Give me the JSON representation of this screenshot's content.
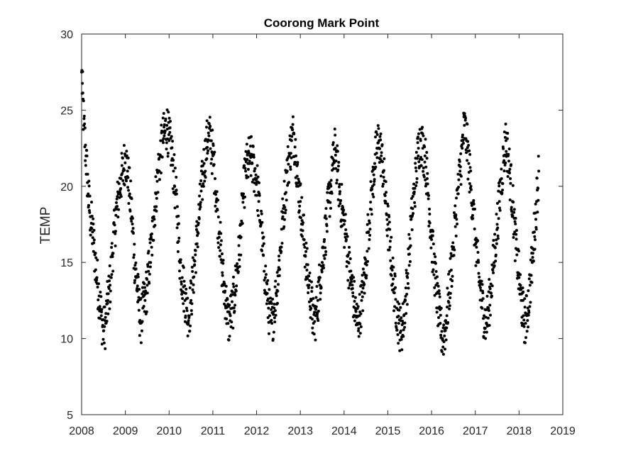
{
  "chart_data": {
    "type": "scatter",
    "title": "Coorong Mark Point",
    "xlabel": "",
    "ylabel": "TEMP",
    "xlim": [
      2008,
      2019
    ],
    "ylim": [
      5,
      30
    ],
    "xticks": [
      2008,
      2009,
      2010,
      2011,
      2012,
      2013,
      2014,
      2015,
      2016,
      2017,
      2018,
      2019
    ],
    "xtick_labels": [
      "2008",
      "2009",
      "2010",
      "2011",
      "2012",
      "2013",
      "2014",
      "2015",
      "2016",
      "2017",
      "2018",
      "2019"
    ],
    "yticks": [
      5,
      10,
      15,
      20,
      25,
      30
    ],
    "ytick_labels": [
      "5",
      "10",
      "15",
      "20",
      "25",
      "30"
    ],
    "grid": false,
    "marker_color": "#000000",
    "series_description": "Daily water temperature, Jan 2008 – Jun 2018, seasonal cycle",
    "series": [
      {
        "name": "TEMP",
        "x": [
          2008.0,
          2008.05,
          2008.1,
          2008.15,
          2008.2,
          2008.25,
          2008.3,
          2008.35,
          2008.4,
          2008.45,
          2008.5,
          2008.55,
          2008.6,
          2008.65,
          2008.7,
          2008.75,
          2008.8,
          2008.85,
          2008.9,
          2008.95,
          2009.0,
          2009.05,
          2009.1,
          2009.15,
          2009.2,
          2009.25,
          2009.3,
          2009.35,
          2009.4,
          2009.45,
          2009.5,
          2009.55,
          2009.6,
          2009.65,
          2009.7,
          2009.75,
          2009.8,
          2009.85,
          2009.9,
          2009.95,
          2010.0,
          2010.05,
          2010.1,
          2010.15,
          2010.2,
          2010.25,
          2010.3,
          2010.35,
          2010.4,
          2010.45,
          2010.5,
          2010.55,
          2010.6,
          2010.65,
          2010.7,
          2010.75,
          2010.8,
          2010.85,
          2010.9,
          2010.95,
          2011.0,
          2011.05,
          2011.1,
          2011.15,
          2011.2,
          2011.25,
          2011.3,
          2011.35,
          2011.4,
          2011.45,
          2011.5,
          2011.55,
          2011.6,
          2011.65,
          2011.7,
          2011.75,
          2011.8,
          2011.85,
          2011.9,
          2011.95,
          2012.0,
          2012.05,
          2012.1,
          2012.15,
          2012.2,
          2012.25,
          2012.3,
          2012.35,
          2012.4,
          2012.45,
          2012.5,
          2012.55,
          2012.6,
          2012.65,
          2012.7,
          2012.75,
          2012.8,
          2012.85,
          2012.9,
          2012.95,
          2013.0,
          2013.05,
          2013.1,
          2013.15,
          2013.2,
          2013.25,
          2013.3,
          2013.35,
          2013.4,
          2013.45,
          2013.5,
          2013.55,
          2013.6,
          2013.65,
          2013.7,
          2013.75,
          2013.8,
          2013.85,
          2013.9,
          2013.95,
          2014.0,
          2014.05,
          2014.1,
          2014.15,
          2014.2,
          2014.25,
          2014.3,
          2014.35,
          2014.4,
          2014.45,
          2014.5,
          2014.55,
          2014.6,
          2014.65,
          2014.7,
          2014.75,
          2014.8,
          2014.85,
          2014.9,
          2014.95,
          2015.0,
          2015.05,
          2015.1,
          2015.15,
          2015.2,
          2015.25,
          2015.3,
          2015.35,
          2015.4,
          2015.45,
          2015.5,
          2015.55,
          2015.6,
          2015.65,
          2015.7,
          2015.75,
          2015.8,
          2015.85,
          2015.9,
          2015.95,
          2016.0,
          2016.05,
          2016.1,
          2016.15,
          2016.2,
          2016.25,
          2016.3,
          2016.35,
          2016.4,
          2016.45,
          2016.5,
          2016.55,
          2016.6,
          2016.65,
          2016.7,
          2016.75,
          2016.8,
          2016.85,
          2016.9,
          2016.95,
          2017.0,
          2017.05,
          2017.1,
          2017.15,
          2017.2,
          2017.25,
          2017.3,
          2017.35,
          2017.4,
          2017.45,
          2017.5,
          2017.55,
          2017.6,
          2017.65,
          2017.7,
          2017.75,
          2017.8,
          2017.85,
          2017.9,
          2017.95,
          2018.0,
          2018.05,
          2018.1,
          2018.15,
          2018.2,
          2018.25,
          2018.3,
          2018.35,
          2018.4,
          2018.45
        ],
        "y": [
          27.5,
          24.0,
          22.0,
          19.5,
          18.0,
          17.0,
          15.5,
          14.0,
          12.8,
          11.5,
          10.5,
          11.0,
          12.5,
          13.5,
          15.5,
          17.0,
          18.5,
          19.5,
          20.5,
          21.0,
          22.0,
          21.0,
          19.5,
          18.0,
          15.5,
          14.0,
          12.5,
          11.0,
          12.0,
          12.5,
          13.5,
          15.0,
          16.0,
          18.0,
          19.5,
          21.0,
          22.0,
          23.0,
          23.5,
          24.0,
          23.0,
          22.5,
          21.0,
          19.5,
          17.5,
          15.0,
          14.0,
          13.0,
          12.0,
          11.5,
          12.5,
          14.0,
          15.5,
          17.0,
          18.5,
          20.0,
          21.5,
          22.5,
          23.5,
          23.0,
          22.0,
          20.5,
          18.5,
          17.0,
          15.0,
          13.5,
          12.5,
          11.0,
          11.5,
          12.0,
          13.0,
          14.5,
          15.5,
          17.5,
          19.5,
          21.0,
          21.5,
          22.0,
          21.5,
          21.0,
          20.5,
          19.0,
          17.5,
          15.5,
          14.0,
          12.5,
          11.5,
          11.0,
          12.0,
          13.0,
          14.5,
          16.0,
          18.0,
          19.5,
          21.0,
          22.0,
          23.0,
          23.5,
          22.0,
          20.0,
          19.0,
          17.5,
          16.0,
          14.5,
          13.5,
          12.5,
          11.0,
          11.5,
          12.5,
          14.0,
          15.0,
          16.5,
          17.5,
          19.0,
          20.0,
          21.5,
          22.5,
          21.0,
          19.5,
          18.5,
          17.5,
          16.5,
          15.0,
          14.0,
          13.0,
          12.0,
          11.0,
          11.5,
          12.5,
          13.5,
          15.0,
          17.0,
          18.5,
          20.0,
          21.5,
          22.5,
          23.0,
          22.0,
          21.0,
          19.0,
          17.5,
          16.0,
          14.5,
          13.0,
          12.0,
          11.0,
          10.5,
          11.0,
          12.5,
          14.0,
          16.0,
          18.0,
          19.5,
          21.0,
          22.5,
          23.0,
          22.5,
          22.0,
          20.5,
          18.5,
          16.5,
          15.0,
          13.5,
          12.0,
          11.0,
          10.0,
          10.5,
          11.5,
          13.0,
          14.5,
          16.0,
          18.0,
          19.5,
          21.0,
          22.5,
          24.0,
          23.0,
          21.5,
          20.0,
          18.5,
          16.5,
          15.0,
          13.5,
          12.5,
          11.5,
          11.0,
          12.0,
          13.0,
          14.5,
          16.0,
          17.5,
          19.0,
          20.5,
          22.0,
          23.0,
          22.0,
          20.5,
          19.0,
          17.0,
          15.5,
          14.0,
          12.5,
          11.5,
          11.0,
          12.0,
          13.5,
          15.0,
          17.0,
          19.0,
          21.0
        ]
      }
    ]
  }
}
